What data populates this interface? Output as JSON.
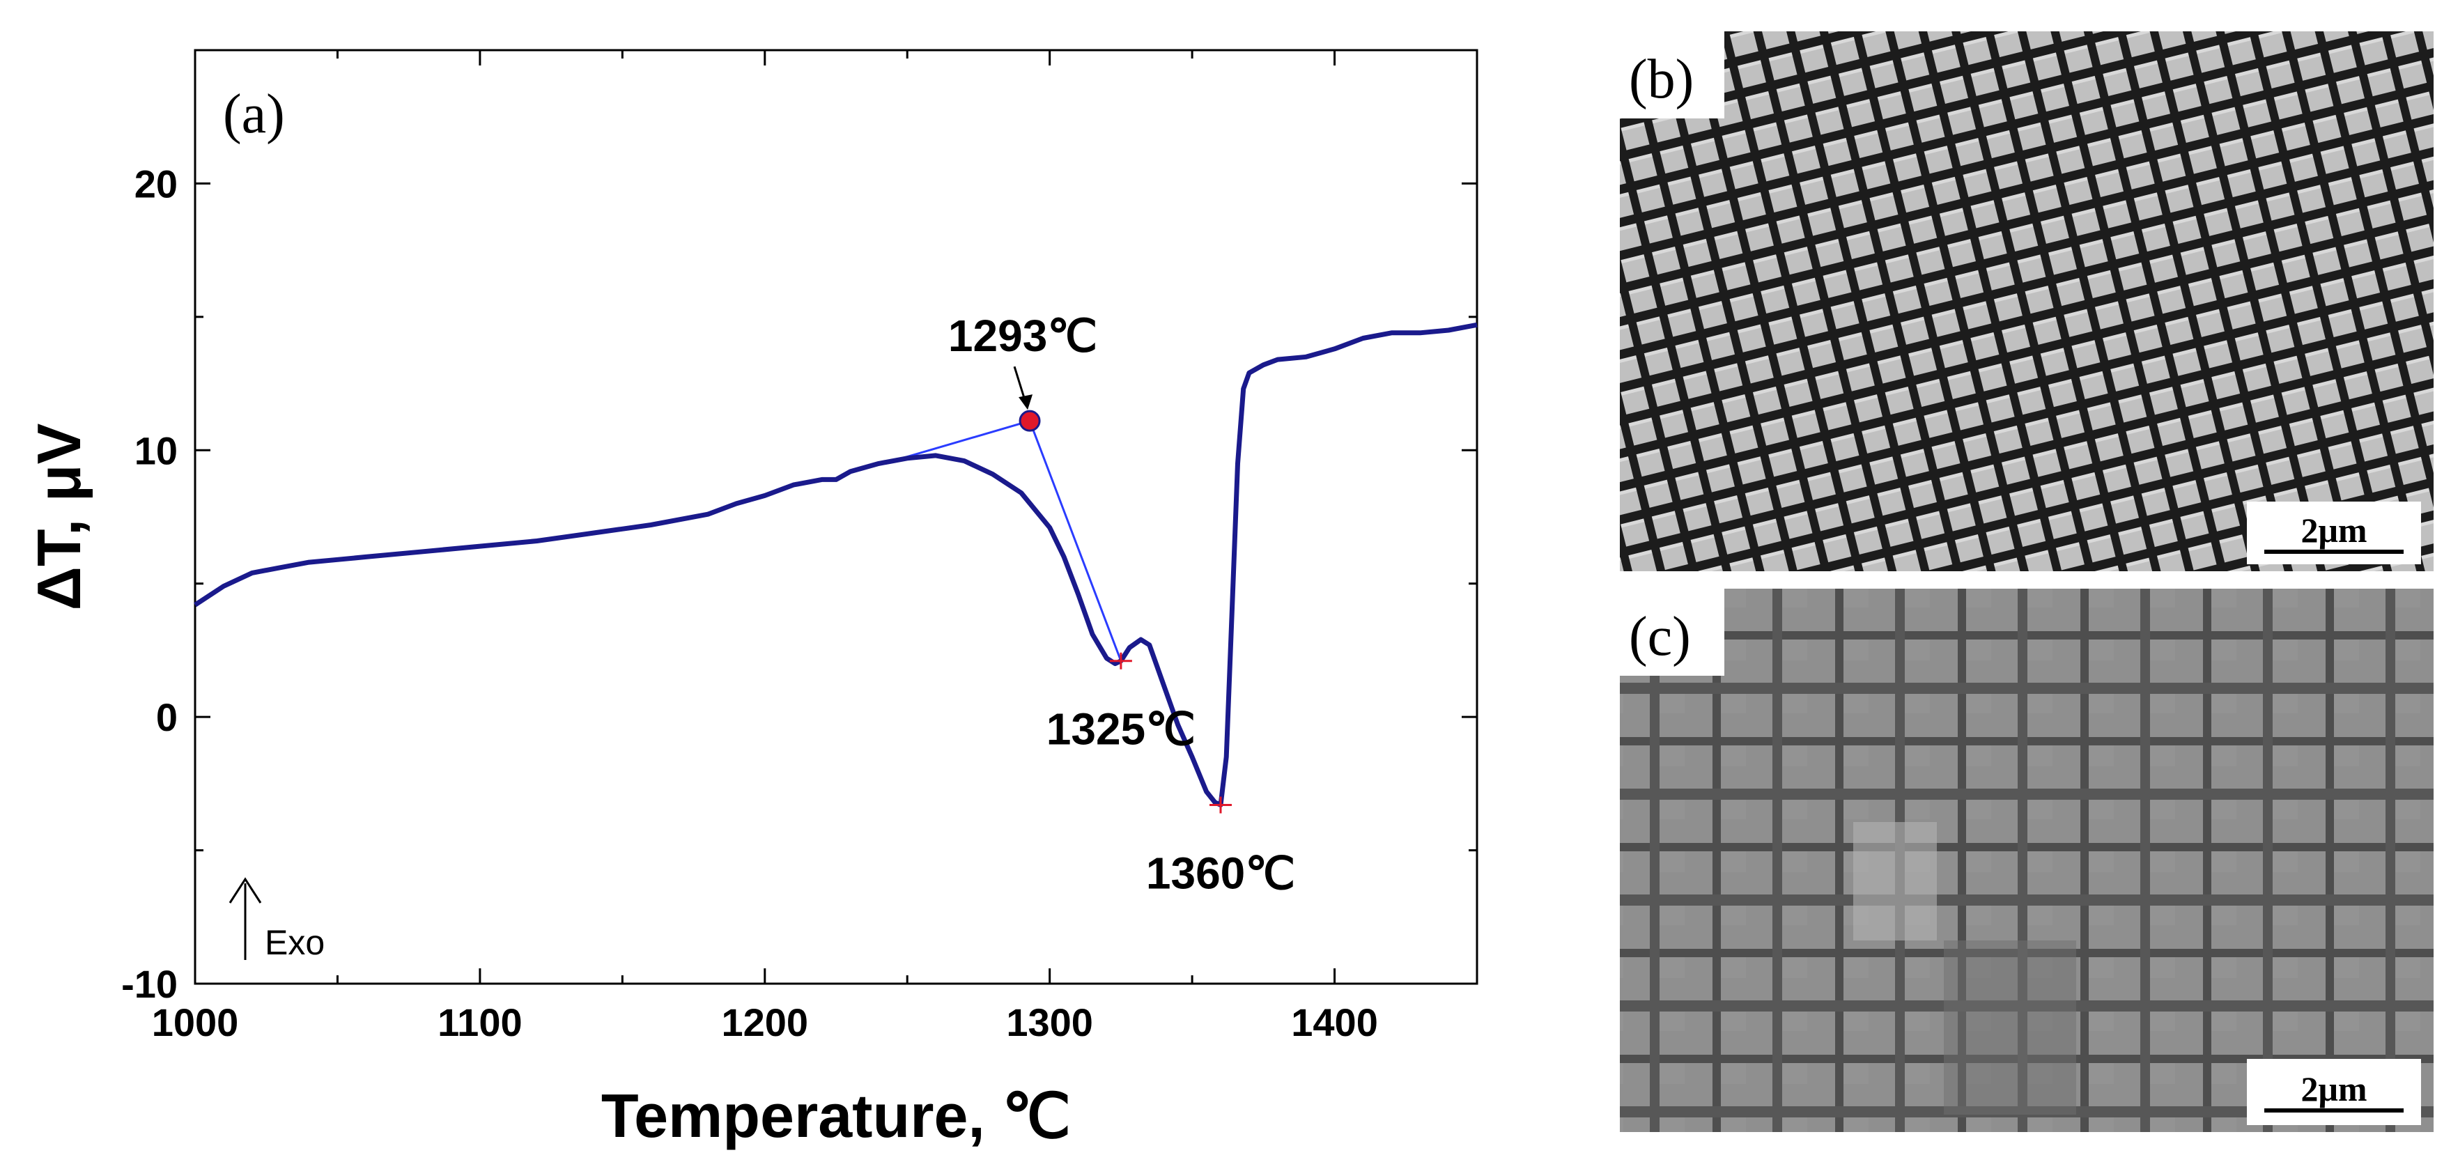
{
  "chart_data": {
    "type": "line",
    "panel_label": "(a)",
    "xlabel": "Temperature, ℃",
    "ylabel": "ΔT, μV",
    "xlim": [
      1000,
      1450
    ],
    "ylim": [
      -10,
      25
    ],
    "xticks": [
      1000,
      1100,
      1200,
      1300,
      1400
    ],
    "yticks": [
      -10,
      0,
      10,
      20
    ],
    "grid": false,
    "series": [
      {
        "name": "DTA curve",
        "color": "#1a1a8c",
        "x": [
          1000,
          1010,
          1020,
          1030,
          1040,
          1050,
          1060,
          1080,
          1100,
          1120,
          1140,
          1160,
          1180,
          1190,
          1200,
          1210,
          1220,
          1225,
          1230,
          1240,
          1250,
          1260,
          1270,
          1280,
          1290,
          1300,
          1305,
          1310,
          1315,
          1320,
          1323,
          1325,
          1328,
          1332,
          1335,
          1340,
          1345,
          1350,
          1355,
          1358,
          1360,
          1362,
          1364,
          1366,
          1368,
          1370,
          1375,
          1380,
          1390,
          1400,
          1410,
          1420,
          1430,
          1440,
          1450
        ],
        "y": [
          4.2,
          4.9,
          5.4,
          5.6,
          5.8,
          5.9,
          6.0,
          6.2,
          6.4,
          6.6,
          6.9,
          7.2,
          7.6,
          8.0,
          8.3,
          8.7,
          8.9,
          8.9,
          9.2,
          9.5,
          9.7,
          9.8,
          9.6,
          9.1,
          8.4,
          7.1,
          6.0,
          4.6,
          3.1,
          2.2,
          2.0,
          2.1,
          2.6,
          2.9,
          2.7,
          1.2,
          -0.3,
          -1.5,
          -2.8,
          -3.2,
          -3.3,
          -1.5,
          4.0,
          9.5,
          12.3,
          12.9,
          13.2,
          13.4,
          13.5,
          13.8,
          14.2,
          14.4,
          14.4,
          14.5,
          14.7
        ]
      }
    ],
    "tangent_lines": [
      {
        "x": [
          1245,
          1293
        ],
        "y": [
          9.6,
          11.1
        ]
      },
      {
        "x": [
          1293,
          1325
        ],
        "y": [
          11.1,
          2.1
        ]
      }
    ],
    "markers": [
      {
        "x": 1293,
        "y": 11.1,
        "label": "1293℃",
        "kind": "onset"
      },
      {
        "x": 1325,
        "y": 2.1,
        "label": "1325℃",
        "kind": "min"
      },
      {
        "x": 1360,
        "y": -3.3,
        "label": "1360℃",
        "kind": "min"
      }
    ],
    "exo_label": "Exo"
  },
  "micrographs": [
    {
      "panel_label": "(b)",
      "scale_bar": "2μm"
    },
    {
      "panel_label": "(c)",
      "scale_bar": "2μm"
    }
  ]
}
